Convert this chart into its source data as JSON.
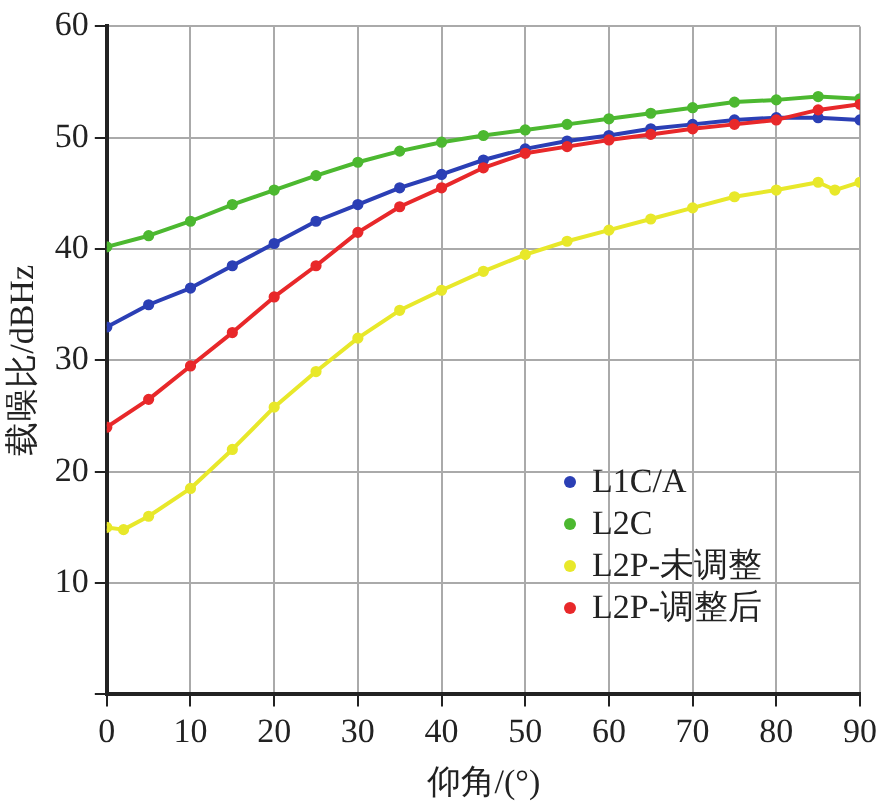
{
  "chart_data": {
    "type": "line",
    "xlabel": "仰角/(°)",
    "ylabel": "载噪比/dBHz",
    "x": [
      0,
      5,
      10,
      15,
      20,
      25,
      30,
      35,
      40,
      45,
      50,
      55,
      60,
      65,
      70,
      75,
      80,
      85,
      90
    ],
    "series": [
      {
        "name": "L1C/A",
        "color": "#2b3fb5",
        "values": [
          33,
          35,
          36.5,
          38.5,
          40.5,
          42.5,
          44,
          45.5,
          46.7,
          48,
          49,
          49.7,
          50.2,
          50.8,
          51.2,
          51.6,
          51.8,
          51.8,
          51.6
        ]
      },
      {
        "name": "L2C",
        "color": "#4cb830",
        "values": [
          40.2,
          41.2,
          42.5,
          44,
          45.3,
          46.6,
          47.8,
          48.8,
          49.6,
          50.2,
          50.7,
          51.2,
          51.7,
          52.2,
          52.7,
          53.2,
          53.4,
          53.7,
          53.5
        ]
      },
      {
        "name": "L2P-未调整",
        "color": "#e8e82a",
        "x": [
          0,
          2,
          5,
          10,
          15,
          20,
          25,
          30,
          35,
          40,
          45,
          50,
          55,
          60,
          65,
          70,
          75,
          80,
          85,
          87,
          90
        ],
        "values": [
          15,
          14.8,
          16,
          18.5,
          22,
          25.8,
          29,
          32,
          34.5,
          36.3,
          38,
          39.5,
          40.7,
          41.7,
          42.7,
          43.7,
          44.7,
          45.3,
          46,
          45.3,
          46
        ]
      },
      {
        "name": "L2P-调整后",
        "color": "#e8282a",
        "values": [
          24,
          26.5,
          29.5,
          32.5,
          35.7,
          38.5,
          41.5,
          43.8,
          45.5,
          47.3,
          48.6,
          49.2,
          49.8,
          50.3,
          50.8,
          51.2,
          51.6,
          52.5,
          53
        ]
      }
    ],
    "xlim": [
      0,
      90
    ],
    "ylim": [
      0,
      60
    ],
    "xticks": [
      0,
      10,
      20,
      30,
      40,
      50,
      60,
      70,
      80,
      90
    ],
    "yticks": [
      {
        "value": 0,
        "label": null
      },
      10,
      20,
      30,
      40,
      50,
      60
    ],
    "grid": true,
    "legend": "right",
    "marker": "circle",
    "line_style": "solid"
  }
}
